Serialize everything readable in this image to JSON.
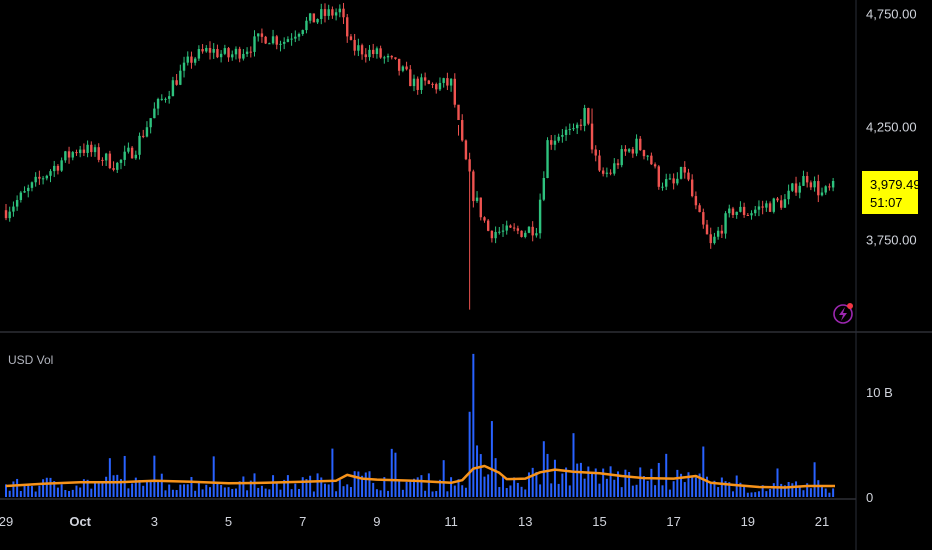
{
  "colors": {
    "background": "#000000",
    "up": "#26a69a",
    "up_bright": "#2ec27e",
    "down": "#ef5350",
    "volume": "#2962ff",
    "volume_ma": "#f7931a",
    "tag_bg": "#ffff00",
    "separator": "#434651",
    "text": "#d1d4dc",
    "flash_icon": "#9c27b0",
    "flash_dot": "#f23645"
  },
  "icons": {
    "flash": "lightning-bolt-icon"
  },
  "chart_data": {
    "type": "candlestick",
    "price_axis": {
      "ticks": [
        "4,750.00",
        "4,250.00",
        "3,750.00"
      ],
      "tick_values": [
        4750,
        4250,
        3750
      ],
      "ylim": [
        3350,
        4810
      ]
    },
    "last_price": {
      "value": "3,979.49",
      "countdown": "51:07",
      "numeric": 3979.49
    },
    "x_axis": {
      "labels": [
        "29",
        "Oct",
        "3",
        "5",
        "7",
        "9",
        "11",
        "13",
        "15",
        "17",
        "19",
        "21"
      ],
      "bold": [
        "Oct"
      ],
      "xlim": [
        29.0,
        22.35
      ]
    },
    "volume_pane": {
      "title": "USD Vol",
      "ticks": [
        "10 B",
        "0"
      ],
      "tick_values": [
        10,
        0
      ],
      "ylim": [
        0,
        15.3
      ],
      "unit": "B"
    },
    "price_path": [
      [
        29.0,
        3880
      ],
      [
        29.5,
        3950
      ],
      [
        30.0,
        4030
      ],
      [
        30.5,
        4100
      ],
      [
        31.0,
        4160
      ],
      [
        31.5,
        4120
      ],
      [
        32.0,
        4080
      ],
      [
        32.5,
        4160
      ],
      [
        33.0,
        4320
      ],
      [
        33.5,
        4440
      ],
      [
        34.0,
        4550
      ],
      [
        34.5,
        4590
      ],
      [
        35.0,
        4560
      ],
      [
        35.5,
        4600
      ],
      [
        36.0,
        4650
      ],
      [
        36.5,
        4630
      ],
      [
        37.0,
        4700
      ],
      [
        37.5,
        4740
      ],
      [
        38.0,
        4760
      ],
      [
        38.3,
        4600
      ],
      [
        38.6,
        4590
      ],
      [
        39.0,
        4570
      ],
      [
        39.5,
        4520
      ],
      [
        40.0,
        4440
      ],
      [
        40.5,
        4430
      ],
      [
        41.0,
        4440
      ],
      [
        41.3,
        4160
      ],
      [
        41.6,
        3950
      ],
      [
        42.0,
        3790
      ],
      [
        42.5,
        3780
      ],
      [
        43.0,
        3790
      ],
      [
        43.3,
        3810
      ],
      [
        43.6,
        4180
      ],
      [
        44.0,
        4230
      ],
      [
        44.3,
        4210
      ],
      [
        44.6,
        4310
      ],
      [
        45.0,
        4030
      ],
      [
        45.3,
        4050
      ],
      [
        45.6,
        4120
      ],
      [
        46.0,
        4170
      ],
      [
        46.3,
        4130
      ],
      [
        46.6,
        4010
      ],
      [
        47.0,
        3990
      ],
      [
        47.3,
        4060
      ],
      [
        47.6,
        3880
      ],
      [
        48.0,
        3720
      ],
      [
        48.3,
        3810
      ],
      [
        48.6,
        3880
      ],
      [
        49.0,
        3870
      ],
      [
        49.5,
        3900
      ],
      [
        50.0,
        3920
      ],
      [
        50.3,
        3990
      ],
      [
        50.6,
        4030
      ],
      [
        51.0,
        3950
      ],
      [
        51.35,
        3979.49
      ]
    ],
    "spikes": [
      {
        "x": 41.5,
        "low": 3440
      },
      {
        "x": 41.2,
        "high": 4210
      },
      {
        "x": 44.8,
        "high": 4330
      }
    ],
    "volume_ma_path": [
      [
        29.0,
        1.05
      ],
      [
        30.0,
        1.25
      ],
      [
        31.0,
        1.4
      ],
      [
        32.0,
        1.4
      ],
      [
        33.0,
        1.55
      ],
      [
        34.0,
        1.45
      ],
      [
        35.0,
        1.3
      ],
      [
        36.0,
        1.35
      ],
      [
        37.0,
        1.45
      ],
      [
        37.9,
        1.55
      ],
      [
        38.2,
        2.1
      ],
      [
        38.6,
        1.75
      ],
      [
        39.0,
        1.65
      ],
      [
        40.0,
        1.55
      ],
      [
        41.0,
        1.35
      ],
      [
        41.3,
        1.6
      ],
      [
        41.6,
        2.7
      ],
      [
        41.9,
        2.95
      ],
      [
        42.3,
        2.3
      ],
      [
        42.5,
        1.7
      ],
      [
        43.0,
        1.75
      ],
      [
        43.4,
        2.35
      ],
      [
        43.8,
        2.6
      ],
      [
        44.3,
        2.4
      ],
      [
        45.0,
        2.25
      ],
      [
        45.6,
        2.0
      ],
      [
        46.2,
        1.8
      ],
      [
        47.0,
        1.75
      ],
      [
        47.6,
        2.0
      ],
      [
        48.0,
        1.35
      ],
      [
        48.6,
        1.15
      ],
      [
        49.3,
        0.95
      ],
      [
        50.0,
        0.9
      ],
      [
        50.6,
        1.05
      ],
      [
        51.0,
        1.05
      ],
      [
        51.35,
        1.05
      ]
    ],
    "volume_spikes": [
      {
        "x": 41.6,
        "value": 13.6
      },
      {
        "x": 41.5,
        "value": 8.1
      },
      {
        "x": 41.7,
        "value": 4.9
      },
      {
        "x": 37.8,
        "value": 4.6
      },
      {
        "x": 43.5,
        "value": 5.3
      },
      {
        "x": 32.2,
        "value": 3.9
      },
      {
        "x": 46.8,
        "value": 4.1
      },
      {
        "x": 40.8,
        "value": 3.5
      },
      {
        "x": 50.8,
        "value": 3.3
      }
    ]
  }
}
